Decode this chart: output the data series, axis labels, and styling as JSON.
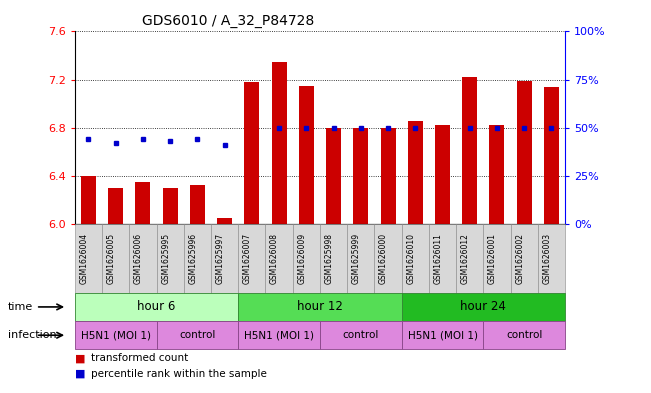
{
  "title": "GDS6010 / A_32_P84728",
  "samples": [
    "GSM1626004",
    "GSM1626005",
    "GSM1626006",
    "GSM1625995",
    "GSM1625996",
    "GSM1625997",
    "GSM1626007",
    "GSM1626008",
    "GSM1626009",
    "GSM1625998",
    "GSM1625999",
    "GSM1626000",
    "GSM1626010",
    "GSM1626011",
    "GSM1626012",
    "GSM1626001",
    "GSM1626002",
    "GSM1626003"
  ],
  "bar_values": [
    6.4,
    6.3,
    6.35,
    6.3,
    6.32,
    6.05,
    7.18,
    7.35,
    7.15,
    6.8,
    6.8,
    6.8,
    6.86,
    6.82,
    7.22,
    6.82,
    7.19,
    7.14
  ],
  "dot_pct": [
    44,
    42,
    44,
    43,
    44,
    41,
    null,
    50,
    50,
    50,
    50,
    50,
    50,
    null,
    50,
    50,
    50,
    50
  ],
  "ymin": 6.0,
  "ymax": 7.6,
  "yticks": [
    6.0,
    6.4,
    6.8,
    7.2,
    7.6
  ],
  "bar_color": "#cc0000",
  "dot_color": "#0000cc",
  "bar_baseline": 6.0,
  "group_colors": [
    "#bbffbb",
    "#55dd55",
    "#22bb22"
  ],
  "group_labels": [
    "hour 6",
    "hour 12",
    "hour 24"
  ],
  "group_ranges": [
    [
      0,
      6
    ],
    [
      6,
      12
    ],
    [
      12,
      18
    ]
  ],
  "inf_labels": [
    "H5N1 (MOI 1)",
    "control",
    "H5N1 (MOI 1)",
    "control",
    "H5N1 (MOI 1)",
    "control"
  ],
  "inf_ranges": [
    [
      0,
      3
    ],
    [
      3,
      6
    ],
    [
      6,
      9
    ],
    [
      9,
      12
    ],
    [
      12,
      15
    ],
    [
      15,
      18
    ]
  ],
  "inf_color": "#dd88dd",
  "legend_red_label": "transformed count",
  "legend_blue_label": "percentile rank within the sample"
}
